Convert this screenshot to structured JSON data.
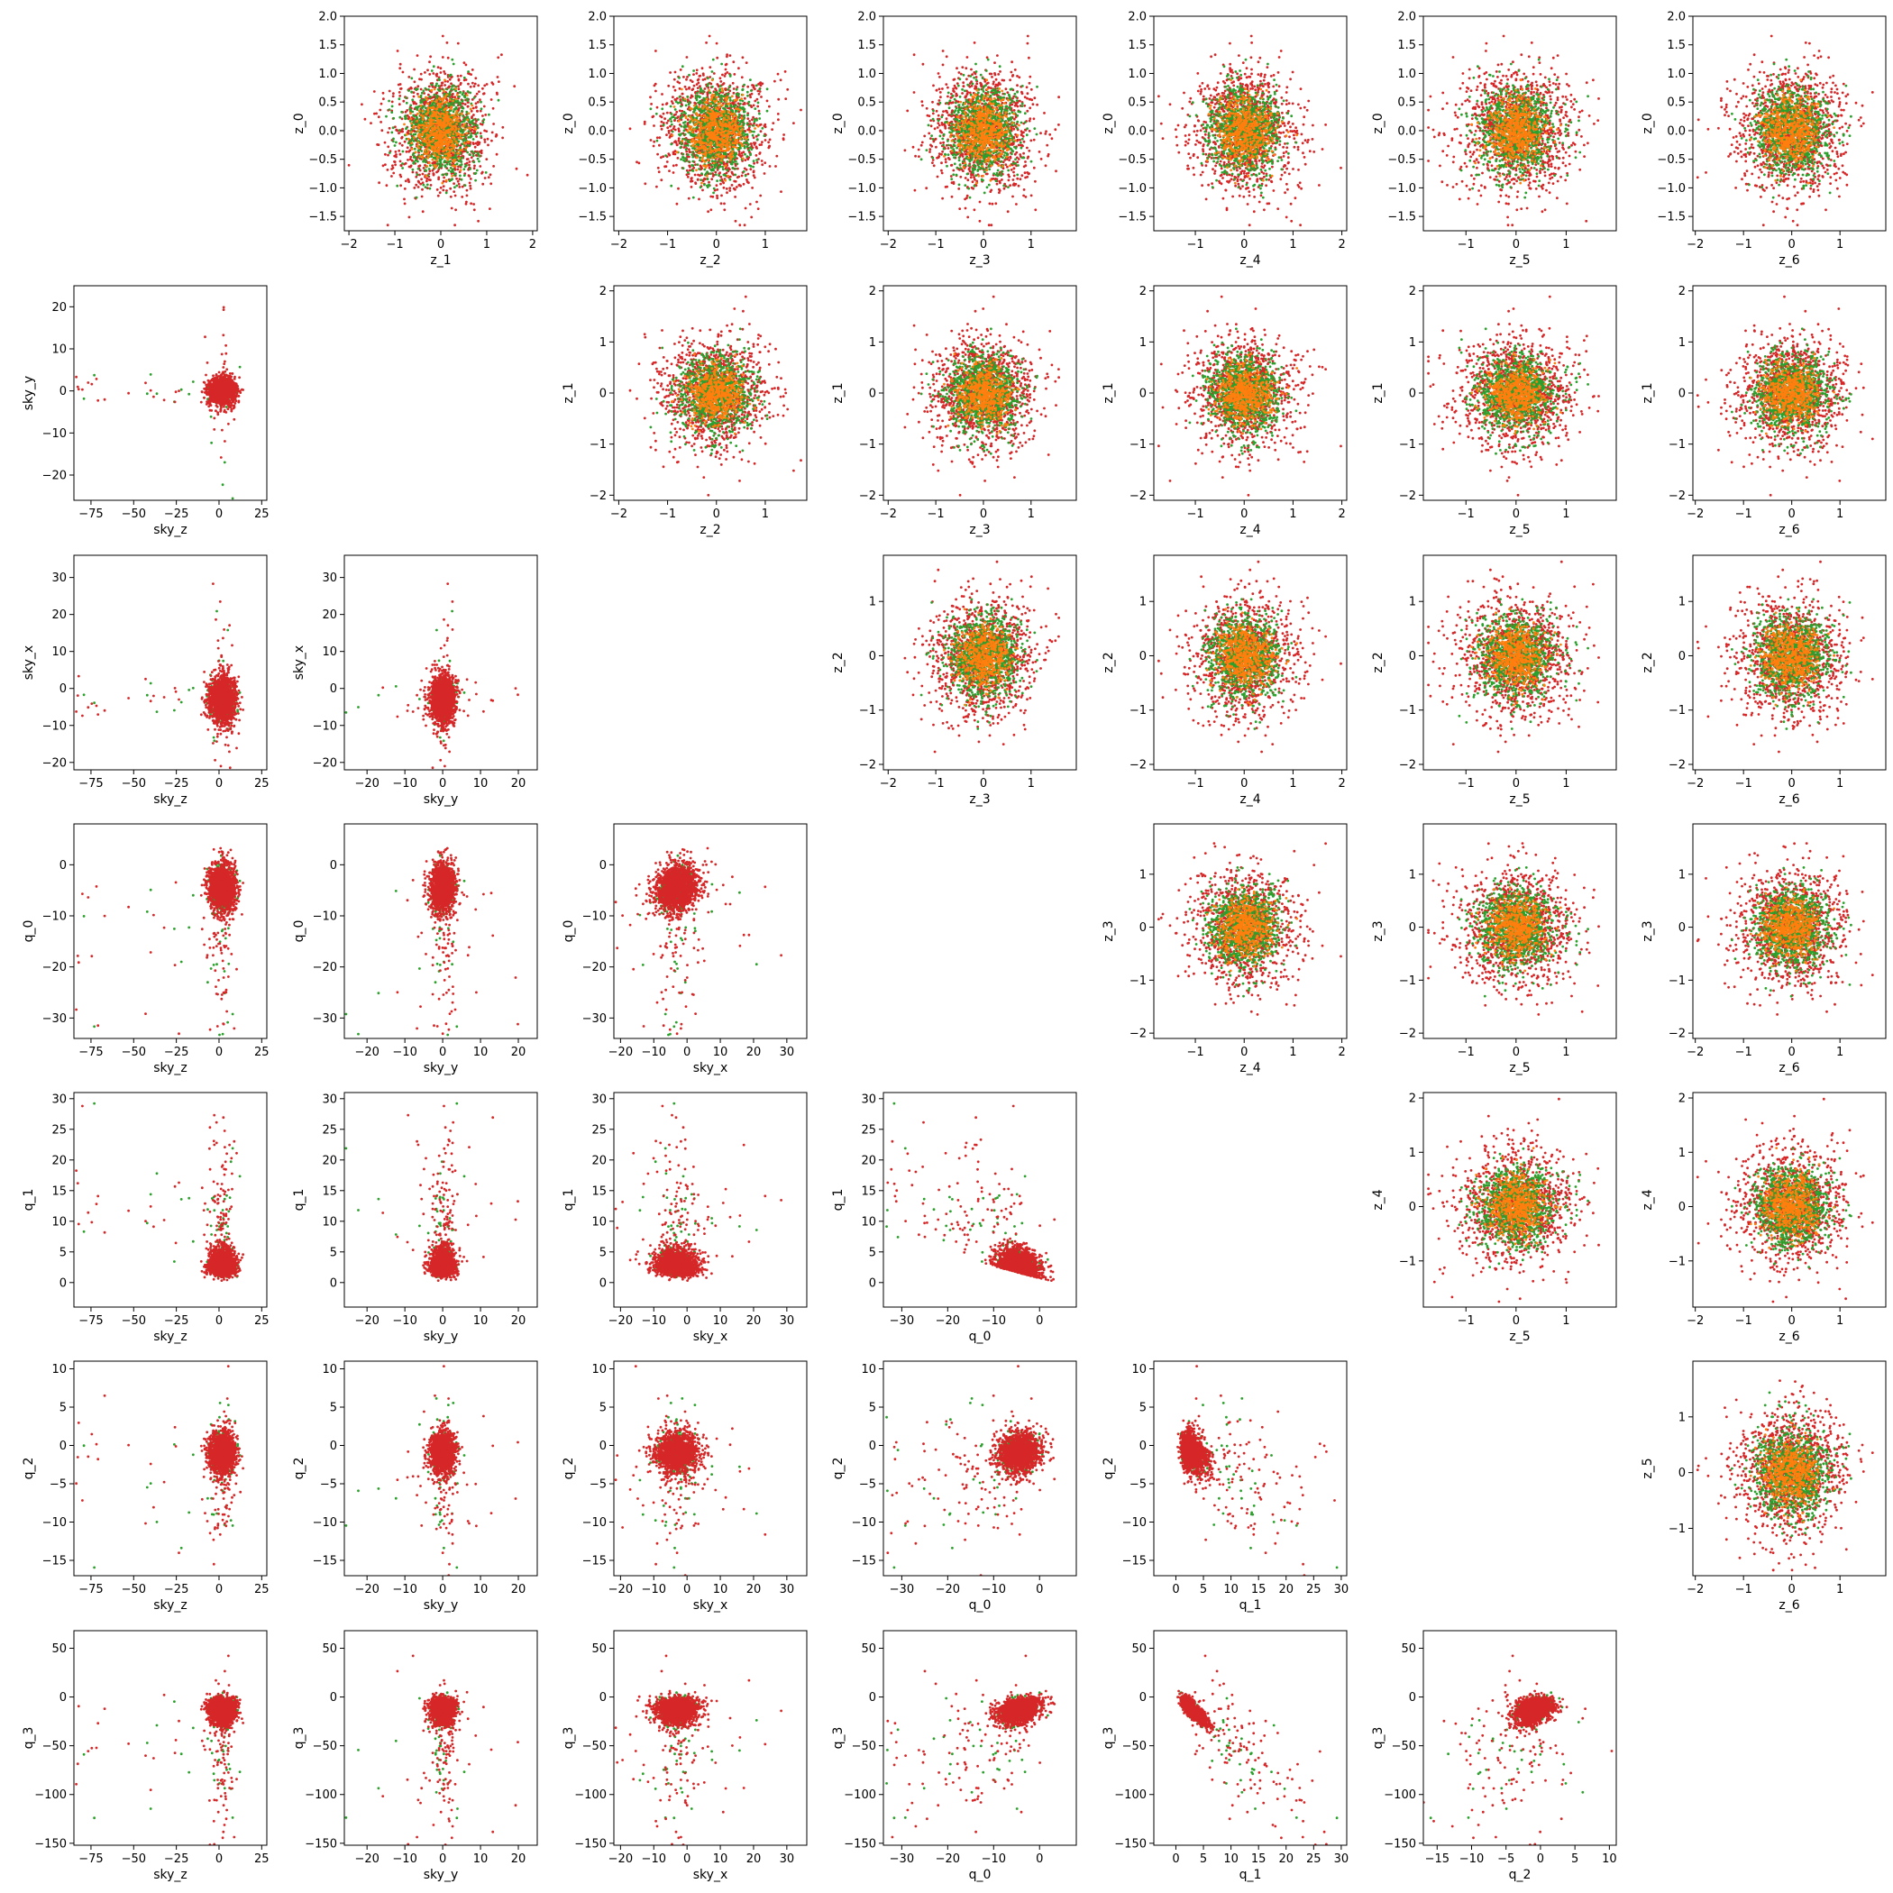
{
  "colors": {
    "red": "#d62728",
    "green": "#2ca02c",
    "orange": "#ff7f0e"
  },
  "chart_data": {
    "type": "scatter",
    "layout": "corner-matrix",
    "point_count": 1800,
    "variables": [
      {
        "name": "z_0",
        "label": "z_0",
        "range": [
          -1.75,
          2.0
        ],
        "ticks": [
          -1.5,
          -1.0,
          -0.5,
          0.0,
          0.5,
          1.0,
          1.5,
          2.0
        ],
        "tick_labels": [
          "−1.5",
          "−1.0",
          "−0.5",
          "0.0",
          "0.5",
          "1.0",
          "1.5",
          "2.0"
        ]
      },
      {
        "name": "z_1",
        "label": "z_1",
        "range": [
          -2.1,
          2.1
        ],
        "ticks": [
          -2,
          -1,
          0,
          1,
          2
        ],
        "tick_labels": [
          "−2",
          "−1",
          "0",
          "1",
          "2"
        ]
      },
      {
        "name": "z_2",
        "label": "z_2",
        "range": [
          -2.1,
          1.85
        ],
        "ticks": [
          -2,
          -1,
          0,
          1
        ],
        "tick_labels": [
          "−2",
          "−1",
          "0",
          "1"
        ]
      },
      {
        "name": "z_3",
        "label": "z_3",
        "range": [
          -2.1,
          1.95
        ],
        "ticks": [
          -2,
          -1,
          0,
          1
        ],
        "tick_labels": [
          "−2",
          "−1",
          "0",
          "1"
        ]
      },
      {
        "name": "z_4",
        "label": "z_4",
        "range": [
          -1.85,
          2.1
        ],
        "ticks": [
          -1,
          0,
          1,
          2
        ],
        "tick_labels": [
          "−1",
          "0",
          "1",
          "2"
        ]
      },
      {
        "name": "z_5",
        "label": "z_5",
        "range": [
          -1.85,
          2.0
        ],
        "ticks": [
          -1,
          0,
          1
        ],
        "tick_labels": [
          "−1",
          "0",
          "1"
        ]
      },
      {
        "name": "z_6",
        "label": "z_6",
        "range": [
          -2.05,
          1.95
        ],
        "ticks": [
          -2,
          -1,
          0,
          1,
          2
        ],
        "tick_labels": [
          "−2",
          "−1",
          "0",
          "1",
          "2"
        ]
      },
      {
        "name": "sky_z",
        "label": "sky_z",
        "range": [
          -85,
          28
        ],
        "ticks": [
          -75,
          -50,
          -25,
          0,
          25
        ],
        "tick_labels": [
          "−75",
          "−50",
          "−25",
          "0",
          "25"
        ]
      },
      {
        "name": "sky_y",
        "label": "sky_y",
        "range": [
          -26,
          25
        ],
        "ticks": [
          -20,
          -10,
          0,
          10,
          20
        ],
        "tick_labels": [
          "−20",
          "−10",
          "0",
          "10",
          "20"
        ]
      },
      {
        "name": "sky_x",
        "label": "sky_x",
        "range": [
          -22,
          36
        ],
        "ticks": [
          -20,
          -10,
          0,
          10,
          20,
          30
        ],
        "tick_labels": [
          "−20",
          "−10",
          "0",
          "10",
          "20",
          "30"
        ]
      },
      {
        "name": "q_0",
        "label": "q_0",
        "range": [
          -34,
          8
        ],
        "ticks": [
          -30,
          -20,
          -10,
          0
        ],
        "tick_labels": [
          "−30",
          "−20",
          "−10",
          "0"
        ]
      },
      {
        "name": "q_1",
        "label": "q_1",
        "range": [
          -4,
          31
        ],
        "ticks": [
          0,
          5,
          10,
          15,
          20,
          25,
          30
        ],
        "tick_labels": [
          "0",
          "5",
          "10",
          "15",
          "20",
          "25",
          "30"
        ]
      },
      {
        "name": "q_2",
        "label": "q_2",
        "range": [
          -17,
          11
        ],
        "ticks": [
          -15,
          -10,
          -5,
          0,
          5,
          10
        ],
        "tick_labels": [
          "−15",
          "−10",
          "−5",
          "0",
          "5",
          "10"
        ]
      },
      {
        "name": "q_3",
        "label": "q_3",
        "range": [
          -152,
          68
        ],
        "ticks": [
          -150,
          -100,
          -50,
          0,
          50
        ],
        "tick_labels": [
          "−150",
          "−100",
          "−50",
          "0",
          "50"
        ]
      }
    ],
    "upper_triangle": {
      "rows": [
        "z_0",
        "z_1",
        "z_2",
        "z_3",
        "z_4",
        "z_5"
      ],
      "cols": [
        "z_1",
        "z_2",
        "z_3",
        "z_4",
        "z_5",
        "z_6"
      ],
      "series_colors": [
        "red",
        "green",
        "orange"
      ]
    },
    "lower_triangle": {
      "rows": [
        "sky_y",
        "sky_x",
        "q_0",
        "q_1",
        "q_2",
        "q_3"
      ],
      "cols": [
        "sky_z",
        "sky_y",
        "sky_x",
        "q_0",
        "q_1",
        "q_2"
      ],
      "series_colors": [
        "green",
        "red"
      ]
    },
    "grid": false,
    "legend": "none"
  }
}
